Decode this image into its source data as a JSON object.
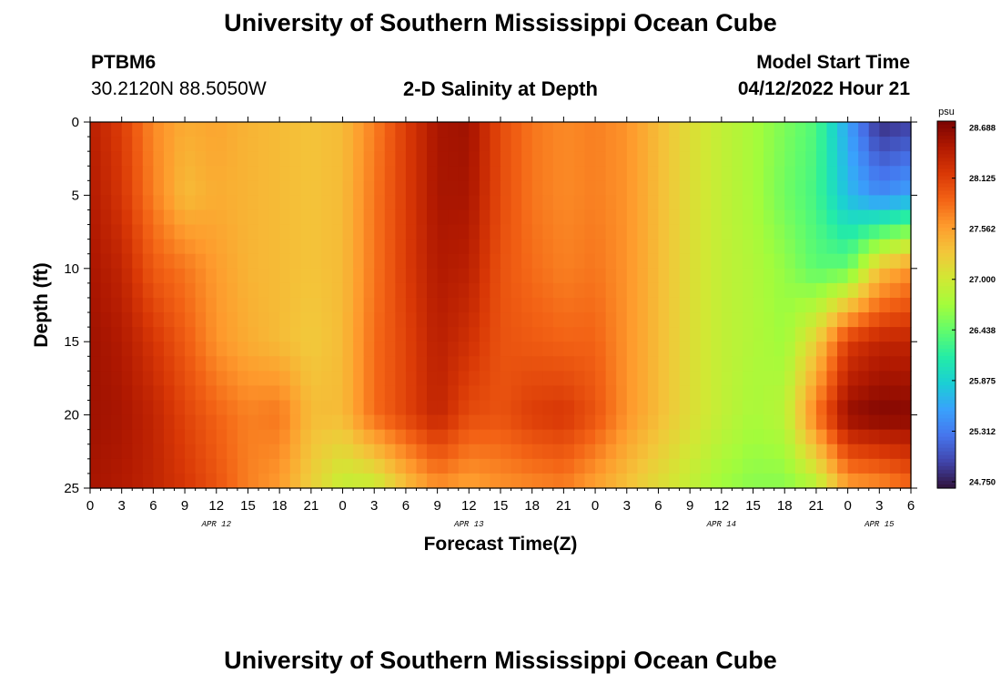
{
  "page": {
    "title_top": "University of Southern Mississippi Ocean Cube",
    "title_bottom": "University of Southern Mississippi Ocean Cube",
    "station_id": "PTBM6",
    "station_coords": "30.2120N  88.5050W",
    "plot_title": "2-D Salinity at Depth",
    "model_start_label": "Model Start Time",
    "model_start_value": "04/12/2022 Hour 21"
  },
  "chart_data": {
    "type": "heatmap",
    "title": "2-D Salinity at Depth",
    "xlabel": "Forecast Time(Z)",
    "ylabel": "Depth (ft)",
    "x_tick_labels": [
      "0",
      "3",
      "6",
      "9",
      "12",
      "15",
      "18",
      "21",
      "0",
      "3",
      "6",
      "9",
      "12",
      "15",
      "18",
      "21",
      "0",
      "3",
      "6",
      "9",
      "12",
      "15",
      "18",
      "21",
      "0",
      "3",
      "6"
    ],
    "x_range_hours": [
      0,
      78
    ],
    "day_labels": [
      {
        "label": "APR 12",
        "hour": 12
      },
      {
        "label": "APR 13",
        "hour": 36
      },
      {
        "label": "APR 14",
        "hour": 60
      },
      {
        "label": "APR 15",
        "hour": 75
      }
    ],
    "y_ticks": [
      0,
      5,
      10,
      15,
      20,
      25
    ],
    "y_range_ft": [
      0,
      25
    ],
    "y_inverted": true,
    "colorbar": {
      "unit": "psu",
      "min": 24.75,
      "max": 28.688,
      "tick_labels": [
        "28.688",
        "28.125",
        "27.562",
        "27.000",
        "26.438",
        "25.875",
        "25.312",
        "24.750"
      ],
      "tick_values": [
        28.688,
        28.125,
        27.562,
        27.0,
        26.438,
        25.875,
        25.312,
        24.75
      ],
      "colormap": [
        "#30123b",
        "#4145ab",
        "#4675ed",
        "#39a2fc",
        "#1bcfd4",
        "#24eca6",
        "#61fc6c",
        "#a4fc3b",
        "#d1e834",
        "#f3c63a",
        "#fe9b2d",
        "#f36315",
        "#d93806",
        "#b11901",
        "#7a0402"
      ]
    },
    "hour_step": 1,
    "depth_step_ft": 1,
    "hour_knots": [
      0,
      3,
      6,
      9,
      12,
      15,
      18,
      21,
      24,
      27,
      30,
      33,
      36,
      39,
      42,
      45,
      48,
      51,
      54,
      57,
      60,
      63,
      66,
      69,
      72,
      75,
      78
    ],
    "depth_knots": [
      0,
      5,
      10,
      15,
      20,
      25
    ],
    "salinity_grid": [
      [
        28.35,
        28.1,
        27.65,
        27.45,
        27.5,
        27.4,
        27.35,
        27.3,
        27.35,
        27.7,
        28.1,
        28.45,
        28.5,
        28.0,
        27.75,
        27.65,
        27.7,
        27.6,
        27.35,
        27.1,
        26.9,
        26.75,
        26.55,
        26.35,
        25.6,
        24.9,
        25.0
      ],
      [
        28.4,
        28.15,
        27.7,
        27.35,
        27.45,
        27.4,
        27.35,
        27.3,
        27.35,
        27.75,
        28.1,
        28.45,
        28.45,
        28.0,
        27.75,
        27.65,
        27.7,
        27.6,
        27.35,
        27.1,
        26.9,
        26.75,
        26.5,
        26.3,
        25.75,
        25.45,
        25.6
      ],
      [
        28.45,
        28.3,
        27.9,
        27.75,
        27.55,
        27.4,
        27.35,
        27.3,
        27.35,
        27.75,
        28.1,
        28.4,
        28.35,
        27.95,
        27.8,
        27.7,
        27.75,
        27.6,
        27.35,
        27.1,
        26.9,
        26.8,
        26.65,
        26.4,
        26.45,
        27.3,
        27.6
      ],
      [
        28.5,
        28.4,
        28.15,
        27.9,
        27.6,
        27.45,
        27.35,
        27.25,
        27.35,
        27.8,
        28.05,
        28.35,
        28.2,
        27.95,
        27.9,
        27.85,
        27.85,
        27.6,
        27.35,
        27.1,
        26.9,
        26.8,
        26.7,
        27.2,
        28.1,
        28.3,
        28.3
      ],
      [
        28.5,
        28.45,
        28.3,
        28.05,
        27.85,
        27.7,
        27.75,
        27.35,
        27.35,
        27.8,
        28.05,
        28.3,
        28.0,
        27.95,
        28.1,
        28.15,
        27.95,
        27.6,
        27.35,
        27.1,
        26.9,
        26.75,
        26.85,
        27.75,
        28.55,
        28.65,
        28.62
      ],
      [
        28.45,
        28.4,
        28.3,
        28.15,
        27.95,
        27.7,
        27.55,
        27.2,
        26.9,
        26.9,
        27.3,
        27.6,
        27.5,
        27.6,
        27.65,
        27.7,
        27.5,
        27.3,
        27.1,
        26.9,
        26.7,
        26.6,
        26.6,
        26.8,
        27.5,
        27.6,
        27.8
      ]
    ]
  }
}
